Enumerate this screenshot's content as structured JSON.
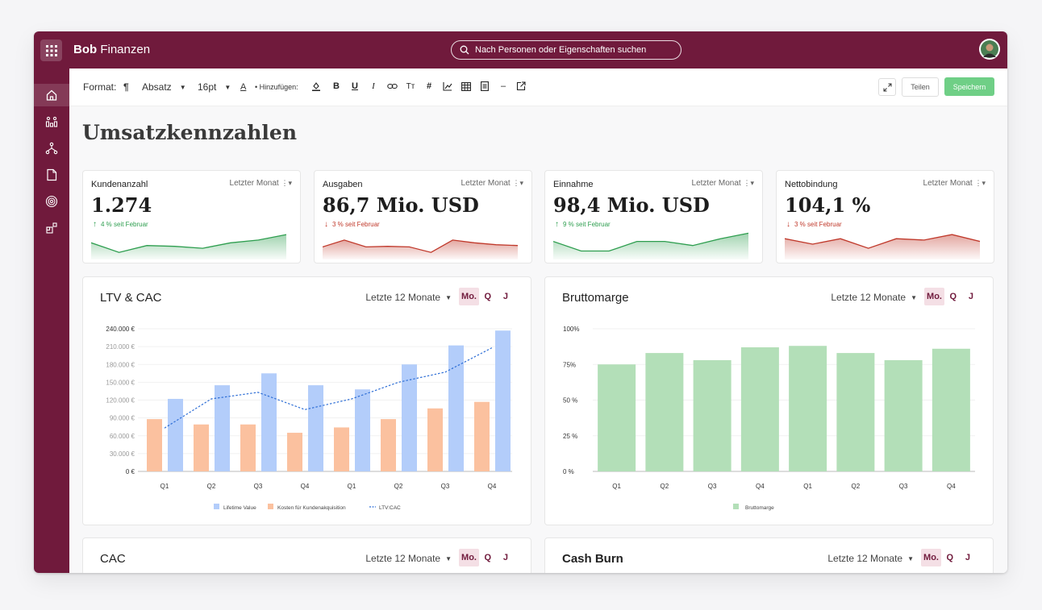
{
  "topbar": {
    "brand_bold": "Bob",
    "brand_rest": " Finanzen",
    "search_placeholder": "Nach Personen oder Eigenschaften suchen"
  },
  "sidebar": {
    "items": [
      {
        "icon": "home-icon",
        "active": true
      },
      {
        "icon": "people-icon"
      },
      {
        "icon": "workflow-icon"
      },
      {
        "icon": "document-icon"
      },
      {
        "icon": "target-icon"
      },
      {
        "icon": "apps-icon"
      }
    ]
  },
  "toolbar": {
    "format_label": "Format:",
    "paragraph_symbol": "¶",
    "style_value": "Absatz",
    "size_value": "16pt",
    "text_color_symbol": "A",
    "insert_label": "• Hinzufügen:",
    "bold": "B",
    "underline": "U",
    "italic": "I",
    "text_size_symbol": "Tт",
    "hash_symbol": "#",
    "dash_symbol": "–",
    "share_label": "Teilen",
    "save_label": "Speichern"
  },
  "page": {
    "title": "Umsatzkennzahlen"
  },
  "colors": {
    "brand": "#701a3c",
    "up": "#2e9e4f",
    "down": "#c0392b",
    "blue": "#b3cdfa",
    "orange": "#fbc19f",
    "green": "#b3dfb8"
  },
  "kpis": [
    {
      "label": "Kundenanzahl",
      "period": "Letzter Monat",
      "value": "1.274",
      "arrow": "↑",
      "change": "4 % seit Februar",
      "trend": "up",
      "spark": [
        0.55,
        0.2,
        0.45,
        0.42,
        0.35,
        0.55,
        0.65,
        0.85
      ]
    },
    {
      "label": "Ausgaben",
      "period": "Letzter Monat",
      "value": "86,7 Mio. USD",
      "arrow": "↓",
      "change": "3 % seit Februar",
      "trend": "down",
      "spark": [
        0.4,
        0.65,
        0.4,
        0.42,
        0.4,
        0.2,
        0.65,
        0.55,
        0.48,
        0.45
      ]
    },
    {
      "label": "Einnahme",
      "period": "Letzter Monat",
      "value": "98,4 Mio. USD",
      "arrow": "↑",
      "change": "9 % seit Februar",
      "trend": "up",
      "spark": [
        0.6,
        0.25,
        0.25,
        0.6,
        0.6,
        0.45,
        0.7,
        0.9
      ]
    },
    {
      "label": "Nettobindung",
      "period": "Letzter Monat",
      "value": "104,1 %",
      "arrow": "↓",
      "change": "3 % seit Februar",
      "trend": "down",
      "spark": [
        0.7,
        0.5,
        0.7,
        0.35,
        0.7,
        0.65,
        0.85,
        0.6
      ]
    }
  ],
  "charts": [
    {
      "title": "LTV & CAC",
      "period": "Letzte 12 Monate",
      "mo": "Mo.",
      "q": "Q",
      "j": "J"
    },
    {
      "title": "Bruttomarge",
      "period": "Letzte 12 Monate",
      "mo": "Mo.",
      "q": "Q",
      "j": "J"
    },
    {
      "title": "CAC",
      "period": "Letzte 12 Monate",
      "mo": "Mo.",
      "q": "Q",
      "j": "J"
    },
    {
      "title": "Cash Burn",
      "period": "Letzte 12 Monate",
      "mo": "Mo.",
      "q": "Q",
      "j": "J"
    }
  ],
  "chart_data": [
    {
      "type": "bar",
      "title": "LTV & CAC",
      "categories": [
        "Q1",
        "Q2",
        "Q3",
        "Q4",
        "Q1",
        "Q2",
        "Q3",
        "Q4"
      ],
      "y_ticks": [
        "0 €",
        "30.000 €",
        "60.000 €",
        "90.000 €",
        "120.000 €",
        "150.000 €",
        "180.000 €",
        "210.000 €",
        "240.000 €"
      ],
      "ylim": [
        0,
        240000
      ],
      "series": [
        {
          "name": "Lifetime Value",
          "type": "bar",
          "values": [
            122000,
            145000,
            165000,
            145000,
            138000,
            180000,
            212000,
            237000
          ]
        },
        {
          "name": "Kosten für Kundenakquisition",
          "type": "bar",
          "values": [
            88000,
            79000,
            79000,
            65000,
            74000,
            88000,
            106000,
            117000
          ]
        },
        {
          "name": "LTV:CAC",
          "type": "line",
          "values": [
            73000,
            122000,
            133000,
            104000,
            122000,
            150000,
            167000,
            208000
          ]
        }
      ],
      "legend": "bottom-center"
    },
    {
      "type": "bar",
      "title": "Bruttomarge",
      "categories": [
        "Q1",
        "Q2",
        "Q3",
        "Q4",
        "Q1",
        "Q2",
        "Q3",
        "Q4"
      ],
      "y_ticks": [
        "0 %",
        "25 %",
        "50 %",
        "75%",
        "100%"
      ],
      "ylim": [
        0,
        100
      ],
      "series": [
        {
          "name": "Bruttomarge",
          "values": [
            75,
            83,
            78,
            87,
            88,
            83,
            78,
            86
          ]
        }
      ],
      "legend": "bottom-center"
    }
  ]
}
